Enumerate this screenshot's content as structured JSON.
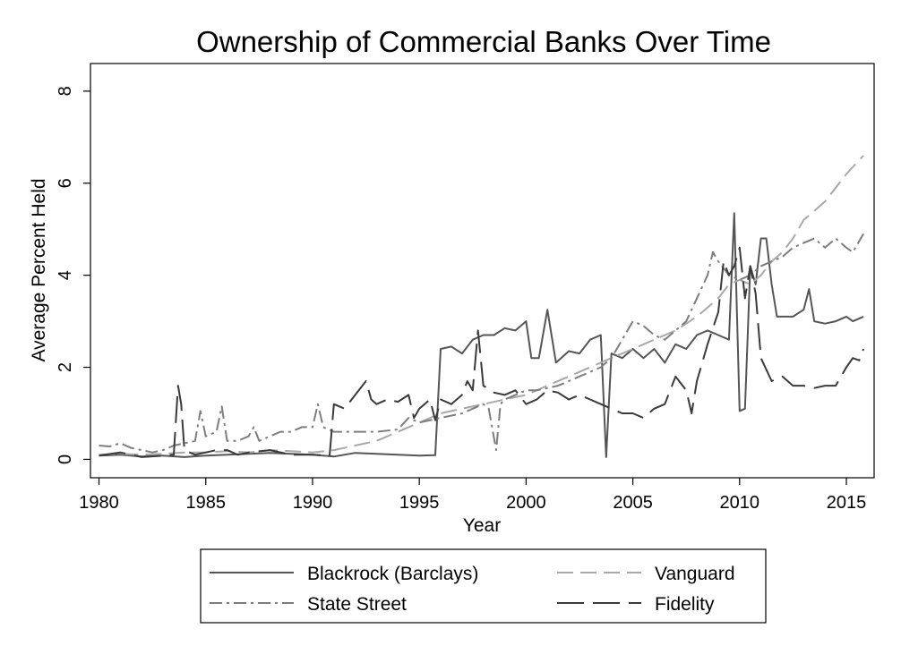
{
  "chart_data": {
    "type": "line",
    "title": "Ownership of Commercial Banks Over Time",
    "xlabel": "Year",
    "ylabel": "Average Percent Held",
    "xlim": [
      1979.6,
      2016.3
    ],
    "ylim": [
      -0.4,
      8.6
    ],
    "xticks": [
      1980,
      1985,
      1990,
      1995,
      2000,
      2005,
      2010,
      2015
    ],
    "yticks": [
      0,
      2,
      4,
      6,
      8
    ],
    "grid": false,
    "legend_position": "bottom",
    "series": [
      {
        "name": "Blackrock (Barclays)",
        "color": "#555555",
        "dash": "solid",
        "points": [
          [
            1980.0,
            0.08
          ],
          [
            1981.0,
            0.1
          ],
          [
            1982.0,
            0.06
          ],
          [
            1983.0,
            0.08
          ],
          [
            1984.0,
            0.05
          ],
          [
            1985.0,
            0.08
          ],
          [
            1986.0,
            0.1
          ],
          [
            1987.0,
            0.12
          ],
          [
            1988.0,
            0.14
          ],
          [
            1989.0,
            0.12
          ],
          [
            1990.0,
            0.1
          ],
          [
            1991.0,
            0.06
          ],
          [
            1992.0,
            0.14
          ],
          [
            1993.0,
            0.12
          ],
          [
            1994.0,
            0.1
          ],
          [
            1995.0,
            0.08
          ],
          [
            1995.75,
            0.09
          ],
          [
            1996.0,
            2.4
          ],
          [
            1996.5,
            2.45
          ],
          [
            1997.0,
            2.3
          ],
          [
            1997.5,
            2.6
          ],
          [
            1998.0,
            2.7
          ],
          [
            1998.5,
            2.7
          ],
          [
            1999.0,
            2.85
          ],
          [
            1999.5,
            2.8
          ],
          [
            2000.0,
            3.0
          ],
          [
            2000.25,
            2.2
          ],
          [
            2000.6,
            2.2
          ],
          [
            2001.0,
            3.25
          ],
          [
            2001.4,
            2.1
          ],
          [
            2002.0,
            2.35
          ],
          [
            2002.5,
            2.3
          ],
          [
            2003.0,
            2.6
          ],
          [
            2003.5,
            2.7
          ],
          [
            2003.75,
            0.05
          ],
          [
            2004.0,
            2.3
          ],
          [
            2004.5,
            2.2
          ],
          [
            2005.0,
            2.4
          ],
          [
            2005.5,
            2.2
          ],
          [
            2006.0,
            2.4
          ],
          [
            2006.5,
            2.1
          ],
          [
            2007.0,
            2.5
          ],
          [
            2007.5,
            2.4
          ],
          [
            2008.0,
            2.7
          ],
          [
            2008.5,
            2.8
          ],
          [
            2009.0,
            2.7
          ],
          [
            2009.5,
            2.6
          ],
          [
            2009.75,
            5.35
          ],
          [
            2010.0,
            1.05
          ],
          [
            2010.25,
            1.1
          ],
          [
            2010.5,
            4.2
          ],
          [
            2010.75,
            3.8
          ],
          [
            2011.0,
            4.8
          ],
          [
            2011.25,
            4.8
          ],
          [
            2011.5,
            3.8
          ],
          [
            2011.75,
            3.1
          ],
          [
            2012.5,
            3.1
          ],
          [
            2013.0,
            3.25
          ],
          [
            2013.25,
            3.7
          ],
          [
            2013.5,
            3.0
          ],
          [
            2014.0,
            2.95
          ],
          [
            2014.5,
            3.0
          ],
          [
            2015.0,
            3.1
          ],
          [
            2015.3,
            3.0
          ],
          [
            2015.8,
            3.1
          ]
        ]
      },
      {
        "name": "Vanguard",
        "color": "#a8a8a8",
        "dash": "18 8",
        "points": [
          [
            1980.0,
            0.1
          ],
          [
            1981.0,
            0.12
          ],
          [
            1982.0,
            0.1
          ],
          [
            1983.0,
            0.12
          ],
          [
            1984.0,
            0.15
          ],
          [
            1985.0,
            0.15
          ],
          [
            1986.0,
            0.18
          ],
          [
            1987.0,
            0.15
          ],
          [
            1988.0,
            0.2
          ],
          [
            1989.0,
            0.18
          ],
          [
            1990.0,
            0.15
          ],
          [
            1991.0,
            0.2
          ],
          [
            1992.0,
            0.3
          ],
          [
            1993.0,
            0.4
          ],
          [
            1994.0,
            0.6
          ],
          [
            1995.0,
            0.8
          ],
          [
            1996.0,
            1.0
          ],
          [
            1997.0,
            1.1
          ],
          [
            1998.0,
            1.2
          ],
          [
            1999.0,
            1.3
          ],
          [
            2000.0,
            1.4
          ],
          [
            2001.0,
            1.6
          ],
          [
            2002.0,
            1.8
          ],
          [
            2003.0,
            2.0
          ],
          [
            2004.0,
            2.2
          ],
          [
            2005.0,
            2.4
          ],
          [
            2006.0,
            2.6
          ],
          [
            2007.0,
            2.8
          ],
          [
            2008.0,
            3.1
          ],
          [
            2008.5,
            3.3
          ],
          [
            2009.0,
            3.5
          ],
          [
            2009.5,
            3.8
          ],
          [
            2010.0,
            3.9
          ],
          [
            2010.5,
            3.8
          ],
          [
            2011.0,
            4.0
          ],
          [
            2011.5,
            4.3
          ],
          [
            2012.0,
            4.5
          ],
          [
            2012.5,
            4.8
          ],
          [
            2013.0,
            5.2
          ],
          [
            2013.5,
            5.4
          ],
          [
            2014.0,
            5.6
          ],
          [
            2014.5,
            5.9
          ],
          [
            2015.0,
            6.2
          ],
          [
            2015.8,
            6.6
          ]
        ]
      },
      {
        "name": "State Street",
        "color": "#7d7d7d",
        "dash": "14 5 3 5",
        "points": [
          [
            1980.0,
            0.3
          ],
          [
            1980.5,
            0.28
          ],
          [
            1981.0,
            0.35
          ],
          [
            1981.5,
            0.25
          ],
          [
            1982.0,
            0.2
          ],
          [
            1982.5,
            0.15
          ],
          [
            1983.0,
            0.2
          ],
          [
            1983.5,
            0.3
          ],
          [
            1984.0,
            0.35
          ],
          [
            1984.5,
            0.4
          ],
          [
            1984.75,
            1.05
          ],
          [
            1985.0,
            0.5
          ],
          [
            1985.5,
            0.6
          ],
          [
            1985.75,
            1.15
          ],
          [
            1986.0,
            0.4
          ],
          [
            1986.5,
            0.4
          ],
          [
            1987.0,
            0.5
          ],
          [
            1987.25,
            0.7
          ],
          [
            1987.5,
            0.4
          ],
          [
            1988.0,
            0.5
          ],
          [
            1988.5,
            0.6
          ],
          [
            1989.0,
            0.6
          ],
          [
            1989.5,
            0.7
          ],
          [
            1990.0,
            0.7
          ],
          [
            1990.25,
            1.2
          ],
          [
            1990.5,
            0.7
          ],
          [
            1991.0,
            0.6
          ],
          [
            1991.5,
            0.6
          ],
          [
            1992.0,
            0.6
          ],
          [
            1993.0,
            0.6
          ],
          [
            1994.0,
            0.65
          ],
          [
            1994.5,
            0.9
          ],
          [
            1995.0,
            0.8
          ],
          [
            1996.0,
            0.9
          ],
          [
            1997.0,
            1.0
          ],
          [
            1997.5,
            1.1
          ],
          [
            1998.0,
            1.2
          ],
          [
            1998.25,
            1.1
          ],
          [
            1998.6,
            0.2
          ],
          [
            1998.8,
            1.2
          ],
          [
            1999.0,
            1.3
          ],
          [
            1999.5,
            1.4
          ],
          [
            2000.0,
            1.5
          ],
          [
            2000.5,
            1.5
          ],
          [
            2001.0,
            1.55
          ],
          [
            2001.5,
            1.6
          ],
          [
            2002.0,
            1.7
          ],
          [
            2002.5,
            1.8
          ],
          [
            2003.0,
            1.9
          ],
          [
            2003.5,
            2.0
          ],
          [
            2004.0,
            2.2
          ],
          [
            2004.5,
            2.6
          ],
          [
            2005.0,
            3.0
          ],
          [
            2005.5,
            2.9
          ],
          [
            2006.0,
            2.7
          ],
          [
            2006.5,
            2.6
          ],
          [
            2007.0,
            2.8
          ],
          [
            2007.5,
            3.0
          ],
          [
            2008.0,
            3.5
          ],
          [
            2008.5,
            4.0
          ],
          [
            2008.75,
            4.5
          ],
          [
            2009.0,
            4.3
          ],
          [
            2009.5,
            4.0
          ],
          [
            2010.0,
            3.9
          ],
          [
            2010.5,
            4.0
          ],
          [
            2011.0,
            4.2
          ],
          [
            2011.5,
            4.3
          ],
          [
            2012.0,
            4.4
          ],
          [
            2012.5,
            4.6
          ],
          [
            2013.0,
            4.7
          ],
          [
            2013.5,
            4.8
          ],
          [
            2014.0,
            4.6
          ],
          [
            2014.5,
            4.8
          ],
          [
            2015.0,
            4.6
          ],
          [
            2015.3,
            4.5
          ],
          [
            2015.8,
            4.9
          ]
        ]
      },
      {
        "name": "Fidelity",
        "color": "#3a3a3a",
        "dash": "30 10",
        "points": [
          [
            1980.0,
            0.08
          ],
          [
            1981.0,
            0.15
          ],
          [
            1982.0,
            0.05
          ],
          [
            1983.0,
            0.08
          ],
          [
            1983.5,
            0.1
          ],
          [
            1983.7,
            1.6
          ],
          [
            1983.85,
            1.2
          ],
          [
            1984.0,
            0.2
          ],
          [
            1984.5,
            0.1
          ],
          [
            1985.0,
            0.15
          ],
          [
            1985.5,
            0.2
          ],
          [
            1986.0,
            0.2
          ],
          [
            1986.5,
            0.1
          ],
          [
            1987.0,
            0.15
          ],
          [
            1988.0,
            0.2
          ],
          [
            1989.0,
            0.1
          ],
          [
            1990.0,
            0.1
          ],
          [
            1990.8,
            0.08
          ],
          [
            1991.0,
            1.2
          ],
          [
            1991.5,
            1.1
          ],
          [
            1992.0,
            1.4
          ],
          [
            1992.5,
            1.7
          ],
          [
            1992.75,
            1.3
          ],
          [
            1993.0,
            1.2
          ],
          [
            1993.5,
            1.3
          ],
          [
            1994.0,
            1.25
          ],
          [
            1994.5,
            1.4
          ],
          [
            1994.75,
            0.9
          ],
          [
            1995.0,
            1.1
          ],
          [
            1995.5,
            1.3
          ],
          [
            1995.75,
            0.85
          ],
          [
            1996.0,
            1.3
          ],
          [
            1996.5,
            1.2
          ],
          [
            1997.0,
            1.4
          ],
          [
            1997.25,
            1.7
          ],
          [
            1997.5,
            1.5
          ],
          [
            1997.75,
            2.8
          ],
          [
            1998.0,
            1.6
          ],
          [
            1998.5,
            1.45
          ],
          [
            1999.0,
            1.4
          ],
          [
            1999.5,
            1.5
          ],
          [
            2000.0,
            1.2
          ],
          [
            2000.5,
            1.3
          ],
          [
            2001.0,
            1.5
          ],
          [
            2001.5,
            1.45
          ],
          [
            2002.0,
            1.3
          ],
          [
            2002.5,
            1.4
          ],
          [
            2003.0,
            1.3
          ],
          [
            2003.5,
            1.2
          ],
          [
            2004.0,
            1.1
          ],
          [
            2004.5,
            1.0
          ],
          [
            2005.0,
            1.0
          ],
          [
            2005.5,
            0.9
          ],
          [
            2006.0,
            1.1
          ],
          [
            2006.5,
            1.2
          ],
          [
            2007.0,
            1.8
          ],
          [
            2007.5,
            1.5
          ],
          [
            2007.75,
            1.0
          ],
          [
            2008.0,
            1.7
          ],
          [
            2008.5,
            2.5
          ],
          [
            2009.0,
            3.2
          ],
          [
            2009.25,
            4.3
          ],
          [
            2009.5,
            4.0
          ],
          [
            2009.75,
            4.2
          ],
          [
            2010.0,
            4.6
          ],
          [
            2010.25,
            3.5
          ],
          [
            2010.5,
            4.2
          ],
          [
            2010.75,
            3.6
          ],
          [
            2011.0,
            2.2
          ],
          [
            2011.5,
            1.7
          ],
          [
            2012.0,
            1.8
          ],
          [
            2012.5,
            1.6
          ],
          [
            2013.0,
            1.6
          ],
          [
            2013.5,
            1.55
          ],
          [
            2014.0,
            1.6
          ],
          [
            2014.5,
            1.6
          ],
          [
            2015.0,
            2.0
          ],
          [
            2015.3,
            2.2
          ],
          [
            2015.6,
            2.15
          ],
          [
            2015.8,
            2.4
          ]
        ]
      }
    ]
  }
}
